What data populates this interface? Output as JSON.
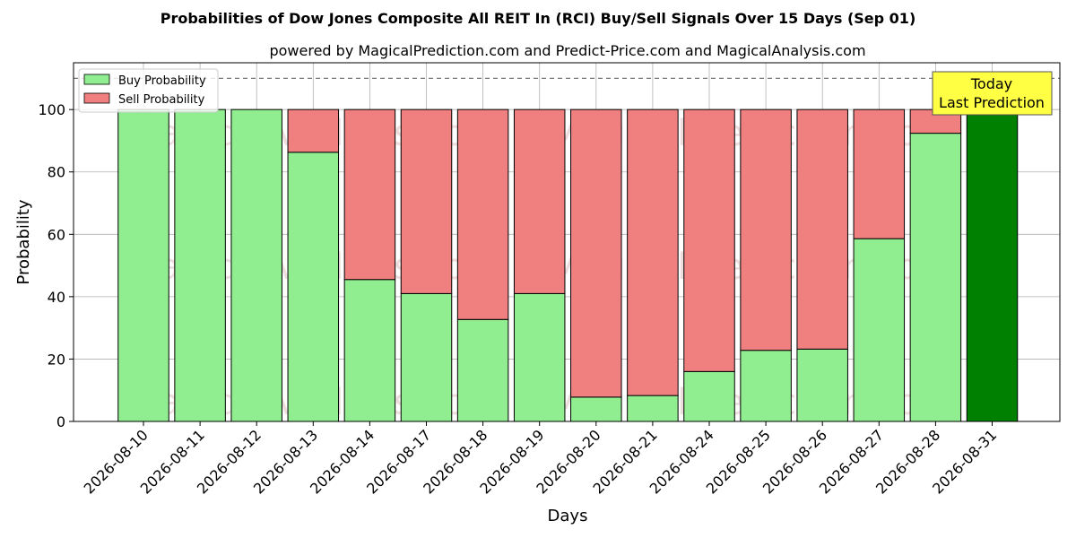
{
  "chart_data": {
    "type": "bar",
    "title": "Probabilities of Dow Jones Composite All REIT In (RCI) Buy/Sell Signals Over 15 Days (Sep 01)",
    "subtitle": "powered by MagicalPrediction.com and Predict-Price.com and MagicalAnalysis.com",
    "xlabel": "Days",
    "ylabel": "Probability",
    "ylim": [
      0,
      115
    ],
    "yticks": [
      0,
      20,
      40,
      60,
      80,
      100
    ],
    "grid": true,
    "legend_position": "top-left",
    "reference_line": 110,
    "categories": [
      "2026-08-10",
      "2026-08-11",
      "2026-08-12",
      "2026-08-13",
      "2026-08-14",
      "2026-08-17",
      "2026-08-18",
      "2026-08-19",
      "2026-08-20",
      "2026-08-21",
      "2026-08-24",
      "2026-08-25",
      "2026-08-26",
      "2026-08-27",
      "2026-08-28",
      "2026-08-31"
    ],
    "series": [
      {
        "name": "Buy Probability",
        "color": "#90ee90",
        "values": [
          100,
          100,
          100,
          86.3,
          45.5,
          41,
          32.7,
          41,
          7.8,
          8.3,
          16,
          22.8,
          23.2,
          58.6,
          92.4,
          100
        ]
      },
      {
        "name": "Sell Probability",
        "color": "#f08080",
        "values": [
          0,
          0,
          0,
          13.7,
          54.5,
          59,
          67.3,
          59,
          92.2,
          91.7,
          84,
          77.2,
          76.8,
          41.4,
          7.6,
          0
        ]
      }
    ],
    "today_index": 15,
    "today_color": "#008000",
    "annotation": {
      "line1": "Today",
      "line2": "Last Prediction",
      "color": "#ffff44"
    },
    "watermarks": [
      "MagicalAnalysis.com",
      "MagicalPrediction.com"
    ]
  }
}
